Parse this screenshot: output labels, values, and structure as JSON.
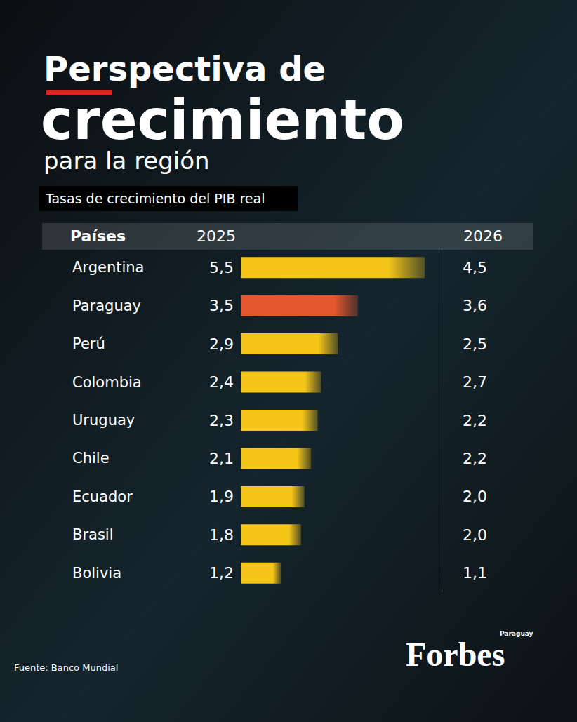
{
  "chart_data": {
    "type": "bar",
    "orientation": "horizontal",
    "title": [
      "Perspectiva de",
      "crecimiento",
      "para la región"
    ],
    "subtitle": "Tasas de crecimiento del PIB real",
    "category_header": "Países",
    "categories": [
      "Argentina",
      "Paraguay",
      "Perú",
      "Colombia",
      "Uruguay",
      "Chile",
      "Ecuador",
      "Brasil",
      "Bolivia"
    ],
    "series": [
      {
        "name": "2025",
        "type": "bar",
        "values": [
          5.5,
          3.5,
          2.9,
          2.4,
          2.3,
          2.1,
          1.9,
          1.8,
          1.2
        ],
        "value_labels": [
          "5,5",
          "3,5",
          "2,9",
          "2,4",
          "2,3",
          "2,1",
          "1,9",
          "1,8",
          "1,2"
        ],
        "colors": [
          "#f5c518",
          "#e4572e",
          "#f5c518",
          "#f5c518",
          "#f5c518",
          "#f5c518",
          "#f5c518",
          "#f5c518",
          "#f5c518"
        ]
      },
      {
        "name": "2026",
        "type": "text",
        "values": [
          4.5,
          3.6,
          2.5,
          2.7,
          2.2,
          2.2,
          2.0,
          2.0,
          1.1
        ],
        "value_labels": [
          "4,5",
          "3,6",
          "2,5",
          "2,7",
          "2,2",
          "2,2",
          "2,0",
          "2,0",
          "1,1"
        ]
      }
    ],
    "xlim": [
      0,
      6
    ],
    "data_labels": true,
    "tick_labels": "y",
    "grid": false,
    "source": "Fuente: Banco Mundial",
    "logo": "Forbes",
    "logo_note": "Paraguay"
  }
}
